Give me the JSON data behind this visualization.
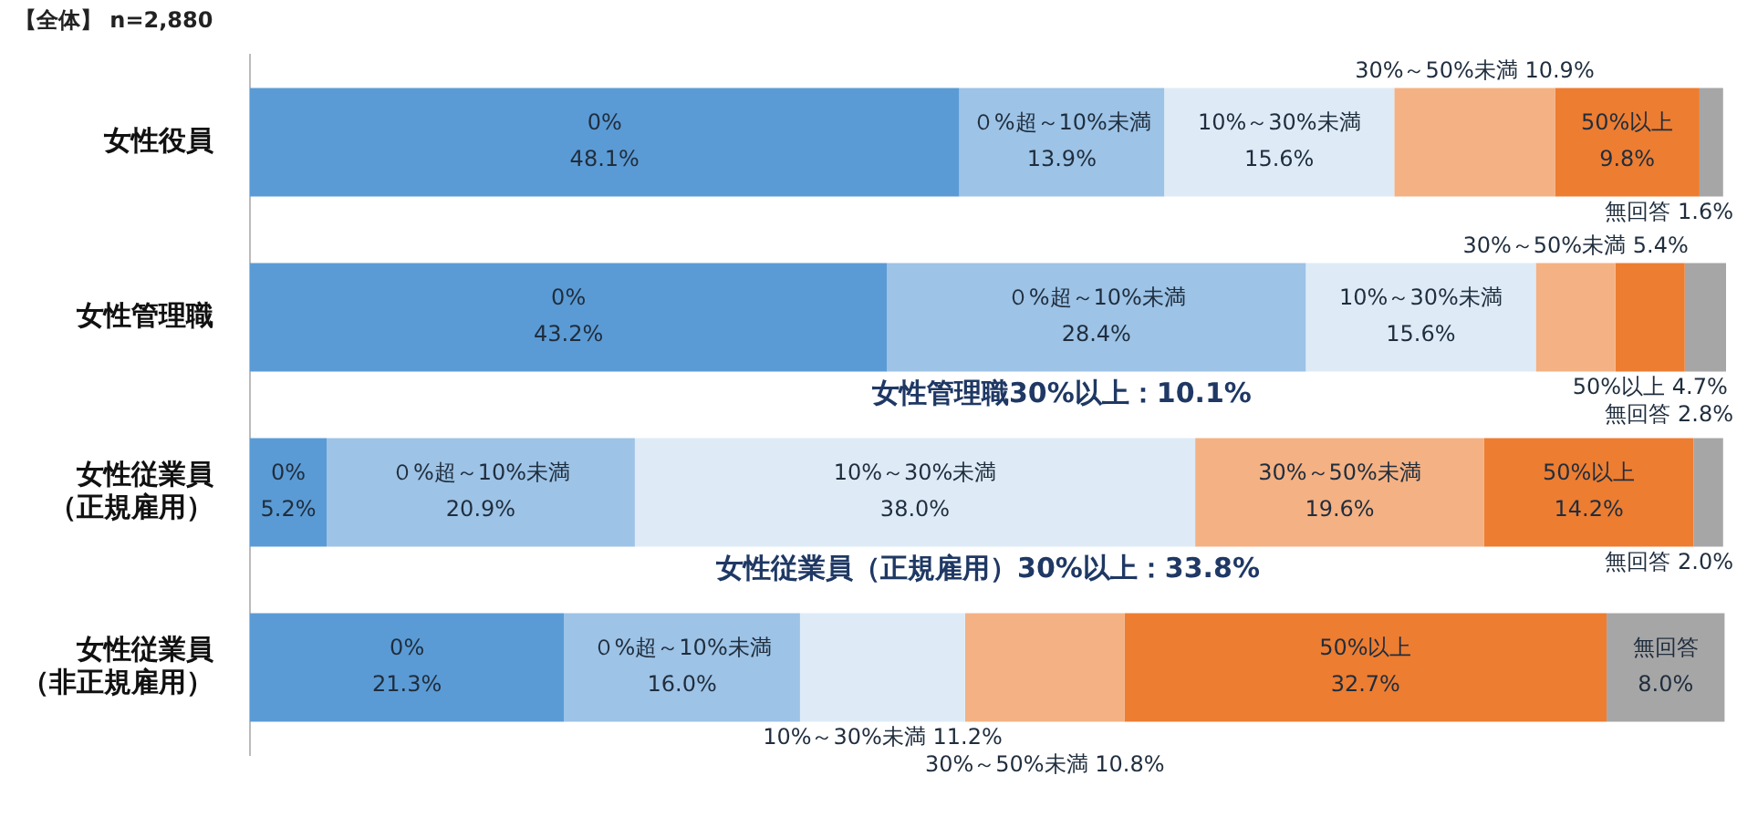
{
  "chart_data": {
    "type": "bar",
    "orientation": "horizontal",
    "stacked": true,
    "data_labels": true,
    "categories": [
      "女性役員",
      "女性管理職",
      "女性従業員（正規雇用）",
      "女性従業員（非正規雇用）"
    ],
    "series": [
      {
        "name": "0%",
        "color": "#5b9bd5",
        "values": [
          48.1,
          43.2,
          5.2,
          21.3
        ],
        "value_labels": [
          "48.1%",
          "43.2%",
          "5.2%",
          "21.3%"
        ]
      },
      {
        "name": "０%超～10%未満",
        "color": "#9dc3e6",
        "values": [
          13.9,
          28.4,
          20.9,
          16.0
        ],
        "value_labels": [
          "13.9%",
          "28.4%",
          "20.9%",
          "16.0%"
        ]
      },
      {
        "name": "10%～30%未満",
        "color": "#deebf7",
        "values": [
          15.6,
          15.6,
          38.0,
          11.2
        ],
        "value_labels": [
          "15.6%",
          "15.6%",
          "38.0%",
          "11.2%"
        ]
      },
      {
        "name": "30%～50%未満",
        "color": "#f4b183",
        "values": [
          10.9,
          5.4,
          19.6,
          10.8
        ],
        "value_labels": [
          "10.9%",
          "5.4%",
          "19.6%",
          "10.8%"
        ]
      },
      {
        "name": "50%以上",
        "color": "#ed7d31",
        "values": [
          9.8,
          4.7,
          14.2,
          32.7
        ],
        "value_labels": [
          "9.8%",
          "4.7%",
          "14.2%",
          "32.7%"
        ]
      },
      {
        "name": "無回答",
        "color": "#a6a6a6",
        "values": [
          1.6,
          2.8,
          2.0,
          8.0
        ],
        "value_labels": [
          "1.6%",
          "2.8%",
          "2.0%",
          "8.0%"
        ]
      }
    ],
    "annotations": [
      "【全体】 n=2,880",
      "女性管理職30%以上：10.1%",
      "女性従業員（正規雇用）30%以上：33.8%"
    ],
    "legend": false
  }
}
